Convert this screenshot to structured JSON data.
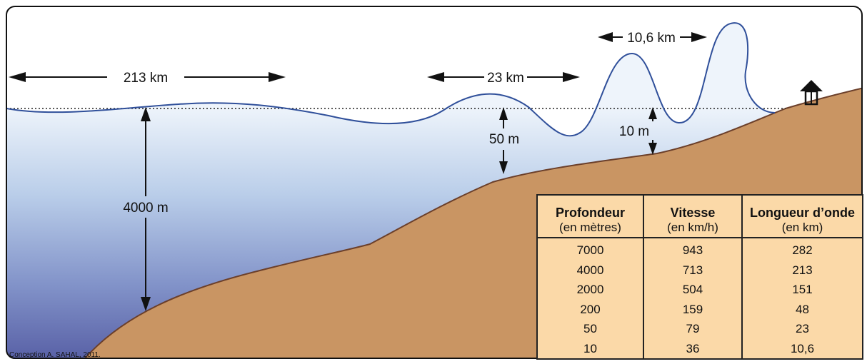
{
  "labels": {
    "wavelength_deep": "213 km",
    "wavelength_mid": "23 km",
    "wavelength_shallow": "10,6 km",
    "depth_deep": "4000 m",
    "depth_mid": "50 m",
    "depth_shallow": "10 m"
  },
  "credit": "Conception A. SAHAL, 2011.",
  "table": {
    "headers": [
      "Profondeur",
      "Vitesse",
      "Longueur d’onde"
    ],
    "units": [
      "(en mètres)",
      "(en km/h)",
      "(en km)"
    ],
    "rows": [
      [
        "7000",
        "943",
        "282"
      ],
      [
        "4000",
        "713",
        "213"
      ],
      [
        "2000",
        "504",
        "151"
      ],
      [
        "200",
        "159",
        "48"
      ],
      [
        "50",
        "79",
        "23"
      ],
      [
        "10",
        "36",
        "10,6"
      ]
    ]
  },
  "colors": {
    "sea_surface": "#e9f1fa",
    "sea_deep": "#5d63a8",
    "land": "#c99563",
    "wave_line": "#2f4f9a",
    "table_bg": "#fbd9a8"
  }
}
